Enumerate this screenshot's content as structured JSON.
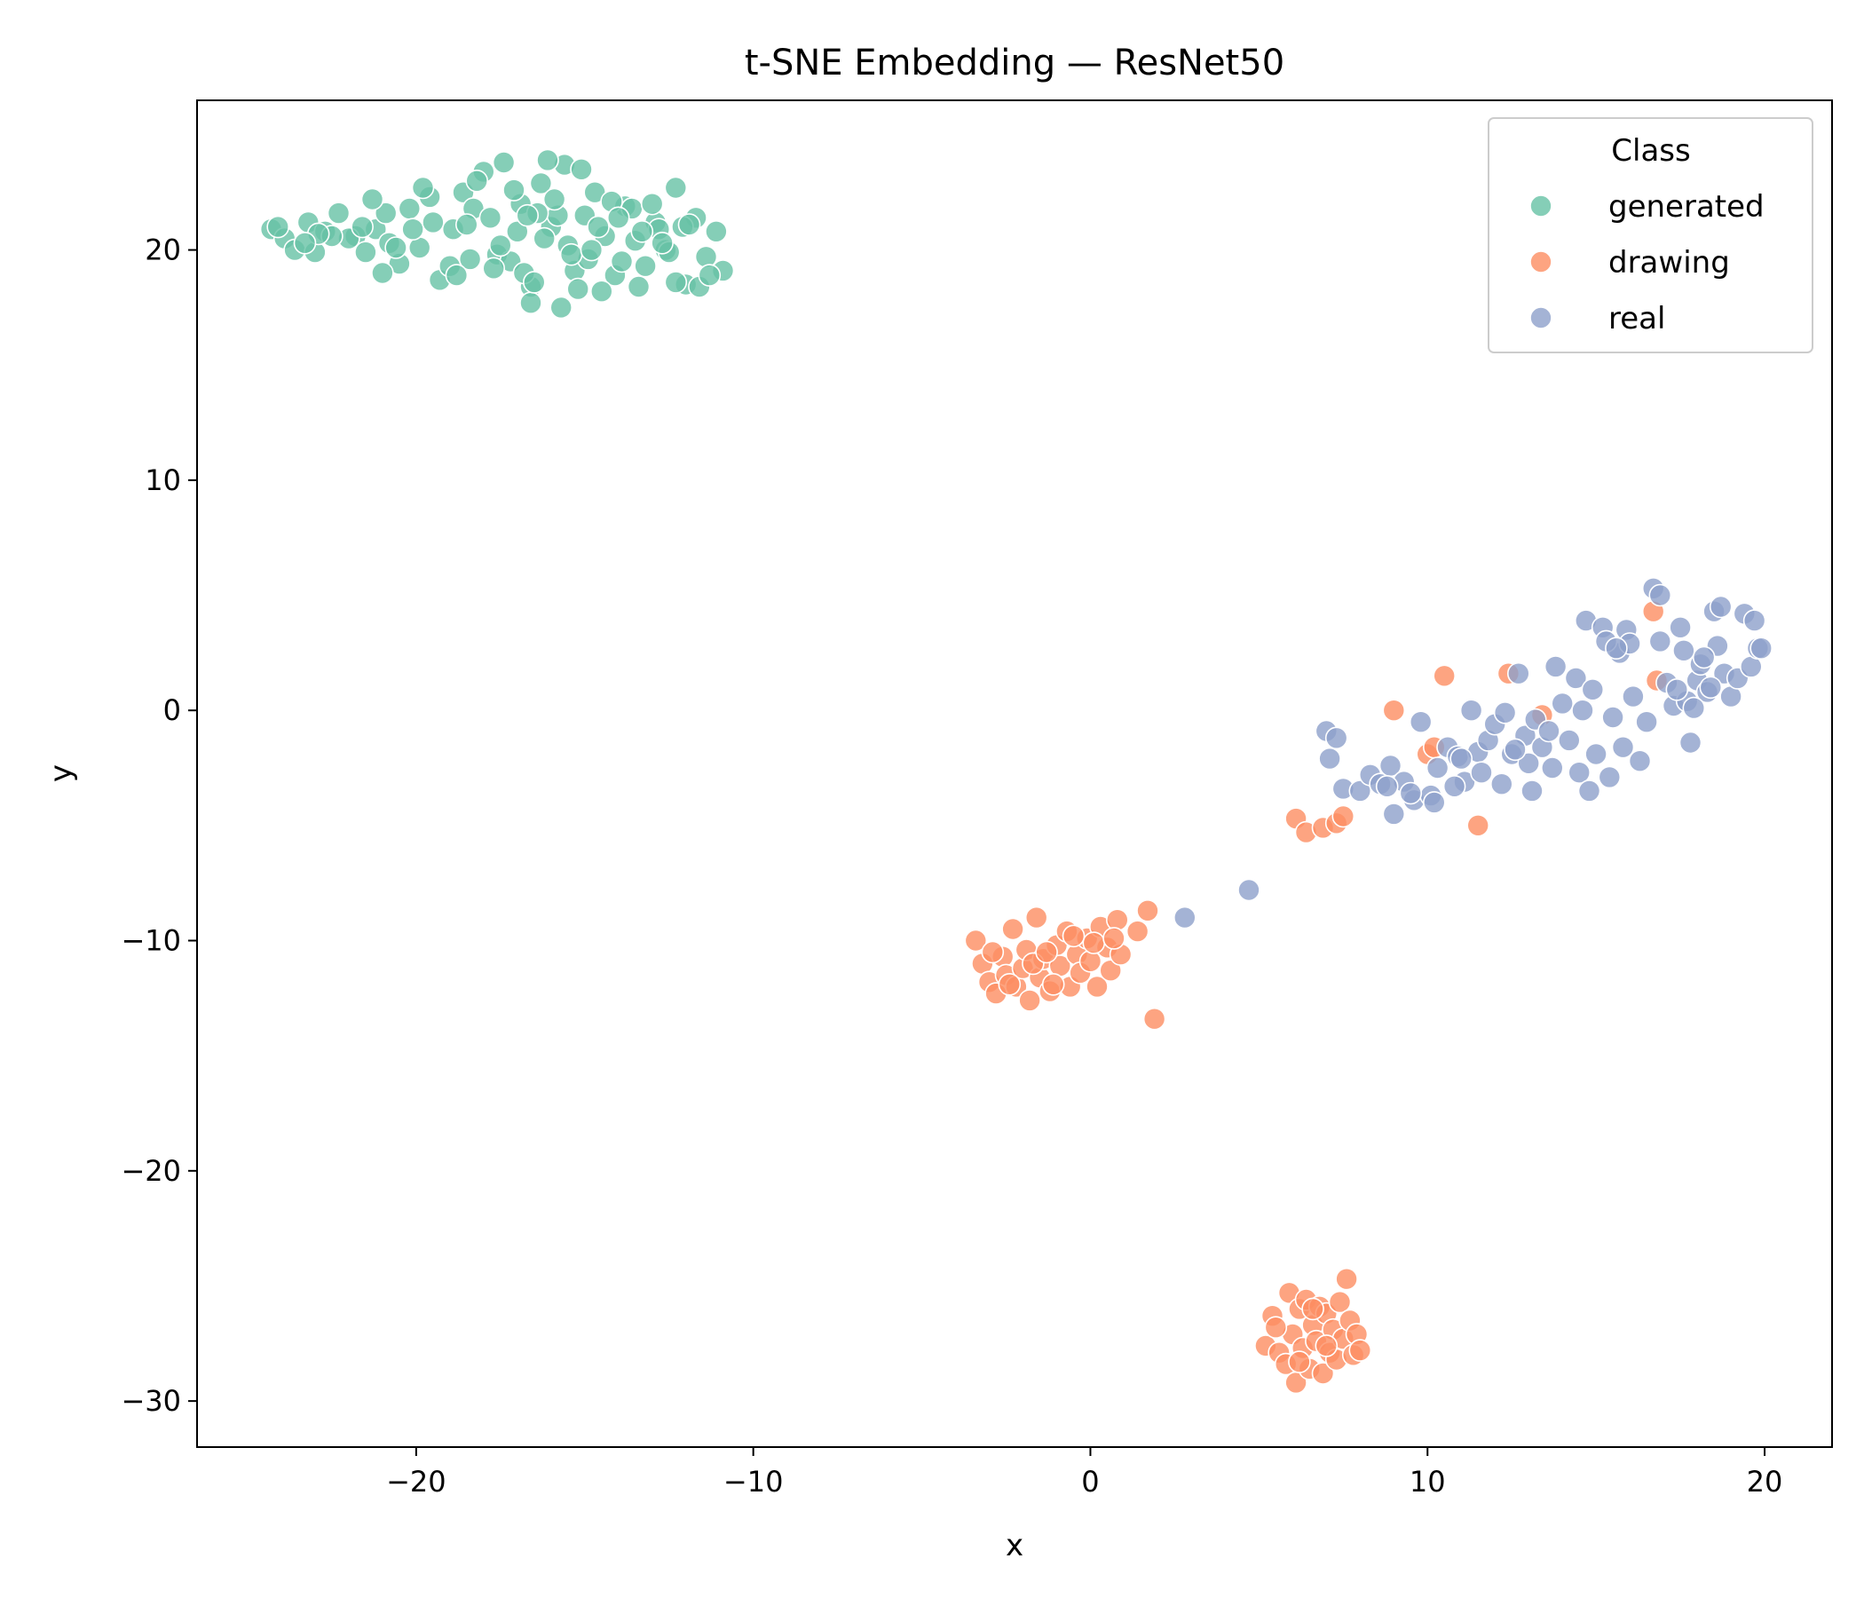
{
  "chart_data": {
    "type": "scatter",
    "title": "t-SNE Embedding — ResNet50",
    "xlabel": "x",
    "ylabel": "y",
    "xlim": [
      -26.5,
      22
    ],
    "ylim": [
      -32,
      26.5
    ],
    "xticks": [
      -20,
      -10,
      0,
      10,
      20
    ],
    "yticks": [
      -30,
      -20,
      -10,
      0,
      10,
      20
    ],
    "xtick_labels": [
      "−20",
      "−10",
      "0",
      "10",
      "20"
    ],
    "ytick_labels": [
      "−30",
      "−20",
      "−10",
      "0",
      "10",
      "20"
    ],
    "grid": false,
    "legend": {
      "title": "Class",
      "placement": "top-right"
    },
    "series": [
      {
        "name": "generated",
        "color": "#66c2a5",
        "points": [
          [
            -24.3,
            20.9
          ],
          [
            -23.9,
            20.5
          ],
          [
            -23.6,
            20.0
          ],
          [
            -23.2,
            21.2
          ],
          [
            -22.7,
            20.8
          ],
          [
            -22.3,
            21.6
          ],
          [
            -21.8,
            20.6
          ],
          [
            -21.5,
            19.9
          ],
          [
            -21.2,
            20.9
          ],
          [
            -20.8,
            20.3
          ],
          [
            -20.5,
            19.4
          ],
          [
            -20.2,
            21.8
          ],
          [
            -19.9,
            20.1
          ],
          [
            -19.6,
            22.3
          ],
          [
            -19.3,
            18.7
          ],
          [
            -18.9,
            20.9
          ],
          [
            -18.6,
            22.5
          ],
          [
            -18.3,
            21.8
          ],
          [
            -18.0,
            23.4
          ],
          [
            -17.6,
            19.8
          ],
          [
            -17.2,
            19.5
          ],
          [
            -16.9,
            22.0
          ],
          [
            -16.6,
            18.4
          ],
          [
            -16.3,
            22.9
          ],
          [
            -16.0,
            21.0
          ],
          [
            -15.6,
            23.7
          ],
          [
            -15.3,
            19.1
          ],
          [
            -15.0,
            21.5
          ],
          [
            -14.7,
            22.5
          ],
          [
            -14.4,
            20.6
          ],
          [
            -14.1,
            18.9
          ],
          [
            -13.8,
            21.9
          ],
          [
            -13.5,
            20.4
          ],
          [
            -13.2,
            19.3
          ],
          [
            -12.9,
            21.2
          ],
          [
            -12.6,
            20.0
          ],
          [
            -12.3,
            22.7
          ],
          [
            -12.0,
            18.5
          ],
          [
            -11.7,
            21.4
          ],
          [
            -11.4,
            19.7
          ],
          [
            -11.1,
            20.8
          ],
          [
            -10.9,
            19.1
          ],
          [
            -16.6,
            17.7
          ],
          [
            -15.7,
            17.5
          ],
          [
            -14.5,
            18.2
          ],
          [
            -13.4,
            18.4
          ],
          [
            -12.3,
            18.6
          ],
          [
            -11.6,
            18.4
          ],
          [
            -16.2,
            20.5
          ],
          [
            -15.8,
            21.5
          ],
          [
            -17.8,
            21.4
          ],
          [
            -17.0,
            20.8
          ],
          [
            -16.4,
            21.6
          ],
          [
            -15.5,
            20.2
          ],
          [
            -14.9,
            19.6
          ],
          [
            -13.6,
            21.8
          ],
          [
            -12.8,
            20.9
          ],
          [
            -18.4,
            19.6
          ],
          [
            -19.0,
            19.3
          ],
          [
            -20.9,
            21.6
          ],
          [
            -22.0,
            20.5
          ],
          [
            -23.0,
            19.9
          ],
          [
            -24.1,
            21.0
          ],
          [
            -22.5,
            20.6
          ],
          [
            -21.0,
            19.0
          ],
          [
            -19.8,
            22.7
          ],
          [
            -18.2,
            23.0
          ],
          [
            -17.4,
            23.8
          ],
          [
            -16.1,
            23.9
          ],
          [
            -15.1,
            23.5
          ],
          [
            -14.2,
            22.1
          ],
          [
            -13.0,
            22.0
          ],
          [
            -12.1,
            21.0
          ],
          [
            -14.6,
            21.0
          ],
          [
            -15.4,
            19.8
          ],
          [
            -16.8,
            19.0
          ],
          [
            -17.5,
            20.2
          ],
          [
            -18.8,
            18.9
          ],
          [
            -20.1,
            20.9
          ],
          [
            -21.6,
            21.0
          ],
          [
            -22.9,
            20.7
          ],
          [
            -23.3,
            20.3
          ],
          [
            -14.0,
            21.4
          ],
          [
            -13.3,
            20.8
          ],
          [
            -12.5,
            19.9
          ],
          [
            -11.9,
            21.1
          ],
          [
            -15.9,
            22.2
          ],
          [
            -16.7,
            21.5
          ],
          [
            -17.1,
            22.6
          ],
          [
            -18.5,
            21.1
          ],
          [
            -19.5,
            21.2
          ],
          [
            -20.6,
            20.1
          ],
          [
            -21.3,
            22.2
          ],
          [
            -14.8,
            20.0
          ],
          [
            -13.9,
            19.5
          ],
          [
            -12.7,
            20.3
          ],
          [
            -11.3,
            18.9
          ],
          [
            -16.5,
            18.6
          ],
          [
            -15.2,
            18.3
          ],
          [
            -17.7,
            19.2
          ]
        ]
      },
      {
        "name": "drawing",
        "color": "#fc8d62",
        "points": [
          [
            -3.4,
            -10.0
          ],
          [
            -3.2,
            -11.0
          ],
          [
            -3.0,
            -11.8
          ],
          [
            -2.8,
            -12.3
          ],
          [
            -2.6,
            -10.7
          ],
          [
            -2.5,
            -11.5
          ],
          [
            -2.3,
            -9.5
          ],
          [
            -2.2,
            -12.0
          ],
          [
            -2.0,
            -11.2
          ],
          [
            -1.9,
            -10.4
          ],
          [
            -1.8,
            -12.6
          ],
          [
            -1.6,
            -9.0
          ],
          [
            -1.5,
            -11.6
          ],
          [
            -1.4,
            -10.8
          ],
          [
            -1.2,
            -12.2
          ],
          [
            -1.0,
            -10.2
          ],
          [
            -0.9,
            -11.1
          ],
          [
            -0.7,
            -9.6
          ],
          [
            -0.6,
            -12.0
          ],
          [
            -0.4,
            -10.6
          ],
          [
            -0.3,
            -11.4
          ],
          [
            -0.1,
            -9.9
          ],
          [
            0.0,
            -10.9
          ],
          [
            0.2,
            -12.0
          ],
          [
            0.3,
            -9.4
          ],
          [
            0.5,
            -10.3
          ],
          [
            0.6,
            -11.3
          ],
          [
            0.8,
            -9.1
          ],
          [
            0.9,
            -10.6
          ],
          [
            1.4,
            -9.6
          ],
          [
            1.7,
            -8.7
          ],
          [
            1.9,
            -13.4
          ],
          [
            -2.9,
            -10.5
          ],
          [
            -1.1,
            -11.9
          ],
          [
            0.1,
            -10.1
          ],
          [
            -1.7,
            -11.0
          ],
          [
            -0.5,
            -9.8
          ],
          [
            -2.4,
            -11.9
          ],
          [
            0.7,
            -9.9
          ],
          [
            -1.3,
            -10.5
          ],
          [
            5.2,
            -27.6
          ],
          [
            5.4,
            -26.3
          ],
          [
            5.6,
            -27.9
          ],
          [
            5.8,
            -28.4
          ],
          [
            5.9,
            -25.3
          ],
          [
            6.0,
            -27.1
          ],
          [
            6.1,
            -29.2
          ],
          [
            6.2,
            -26.0
          ],
          [
            6.3,
            -27.7
          ],
          [
            6.4,
            -25.6
          ],
          [
            6.5,
            -28.6
          ],
          [
            6.6,
            -26.7
          ],
          [
            6.7,
            -27.4
          ],
          [
            6.8,
            -25.9
          ],
          [
            6.9,
            -28.8
          ],
          [
            7.0,
            -26.2
          ],
          [
            7.1,
            -27.9
          ],
          [
            7.2,
            -26.9
          ],
          [
            7.3,
            -28.2
          ],
          [
            7.4,
            -25.7
          ],
          [
            7.5,
            -27.3
          ],
          [
            7.6,
            -24.7
          ],
          [
            7.7,
            -26.5
          ],
          [
            7.8,
            -28.0
          ],
          [
            7.9,
            -27.1
          ],
          [
            8.0,
            -27.8
          ],
          [
            5.5,
            -26.8
          ],
          [
            6.2,
            -28.3
          ],
          [
            7.0,
            -27.6
          ],
          [
            6.6,
            -26.0
          ],
          [
            6.1,
            -4.7
          ],
          [
            6.4,
            -5.3
          ],
          [
            6.9,
            -5.1
          ],
          [
            7.3,
            -4.9
          ],
          [
            7.5,
            -4.6
          ],
          [
            9.0,
            0.0
          ],
          [
            10.0,
            -1.9
          ],
          [
            10.2,
            -1.6
          ],
          [
            10.5,
            1.5
          ],
          [
            11.5,
            -5.0
          ],
          [
            12.4,
            1.6
          ],
          [
            13.4,
            -0.2
          ],
          [
            16.7,
            4.3
          ],
          [
            16.8,
            1.3
          ]
        ]
      },
      {
        "name": "real",
        "color": "#8da0cb",
        "points": [
          [
            2.8,
            -9.0
          ],
          [
            4.7,
            -7.8
          ],
          [
            7.0,
            -0.9
          ],
          [
            7.3,
            -1.2
          ],
          [
            7.1,
            -2.1
          ],
          [
            7.5,
            -3.4
          ],
          [
            8.0,
            -3.5
          ],
          [
            8.3,
            -2.8
          ],
          [
            8.6,
            -3.2
          ],
          [
            8.9,
            -2.4
          ],
          [
            9.0,
            -4.5
          ],
          [
            9.3,
            -3.1
          ],
          [
            9.6,
            -3.9
          ],
          [
            9.8,
            -0.5
          ],
          [
            10.1,
            -3.7
          ],
          [
            10.3,
            -2.5
          ],
          [
            10.6,
            -1.6
          ],
          [
            10.9,
            -2.0
          ],
          [
            11.1,
            -3.1
          ],
          [
            11.3,
            0.0
          ],
          [
            11.5,
            -1.8
          ],
          [
            11.8,
            -1.3
          ],
          [
            12.0,
            -0.6
          ],
          [
            12.2,
            -3.2
          ],
          [
            12.5,
            -1.9
          ],
          [
            12.7,
            1.6
          ],
          [
            12.9,
            -1.1
          ],
          [
            13.1,
            -3.5
          ],
          [
            13.2,
            -0.4
          ],
          [
            13.4,
            -1.6
          ],
          [
            13.6,
            -0.9
          ],
          [
            13.8,
            1.9
          ],
          [
            14.0,
            0.3
          ],
          [
            14.2,
            -1.3
          ],
          [
            14.4,
            1.4
          ],
          [
            14.5,
            -2.7
          ],
          [
            14.7,
            3.9
          ],
          [
            14.9,
            0.9
          ],
          [
            15.0,
            -1.9
          ],
          [
            15.2,
            3.6
          ],
          [
            15.4,
            -2.9
          ],
          [
            15.5,
            -0.3
          ],
          [
            15.7,
            2.5
          ],
          [
            15.9,
            3.5
          ],
          [
            16.1,
            0.6
          ],
          [
            16.3,
            -2.2
          ],
          [
            16.5,
            -0.5
          ],
          [
            16.7,
            5.3
          ],
          [
            16.9,
            3.0
          ],
          [
            17.1,
            1.2
          ],
          [
            17.3,
            0.2
          ],
          [
            17.5,
            3.6
          ],
          [
            17.6,
            2.6
          ],
          [
            17.8,
            -1.4
          ],
          [
            18.0,
            1.3
          ],
          [
            18.1,
            2.0
          ],
          [
            18.3,
            0.8
          ],
          [
            18.5,
            4.3
          ],
          [
            18.6,
            2.8
          ],
          [
            18.8,
            1.6
          ],
          [
            19.0,
            0.6
          ],
          [
            19.2,
            1.4
          ],
          [
            19.4,
            4.2
          ],
          [
            19.6,
            1.9
          ],
          [
            19.7,
            3.9
          ],
          [
            19.8,
            2.7
          ],
          [
            18.4,
            1.0
          ],
          [
            17.7,
            0.4
          ],
          [
            16.9,
            5.0
          ],
          [
            15.3,
            3.0
          ],
          [
            14.6,
            0.0
          ],
          [
            13.0,
            -2.3
          ],
          [
            12.3,
            -0.1
          ],
          [
            11.6,
            -2.7
          ],
          [
            10.8,
            -3.3
          ],
          [
            9.5,
            -3.6
          ],
          [
            8.8,
            -3.3
          ],
          [
            14.8,
            -3.5
          ],
          [
            15.8,
            -1.6
          ],
          [
            17.4,
            0.9
          ],
          [
            18.7,
            4.5
          ],
          [
            19.9,
            2.7
          ],
          [
            16.0,
            2.9
          ],
          [
            13.7,
            -2.5
          ],
          [
            12.6,
            -1.7
          ],
          [
            11.0,
            -2.1
          ],
          [
            10.2,
            -4.0
          ],
          [
            15.6,
            2.7
          ],
          [
            17.9,
            0.1
          ],
          [
            18.2,
            2.3
          ]
        ]
      }
    ]
  }
}
